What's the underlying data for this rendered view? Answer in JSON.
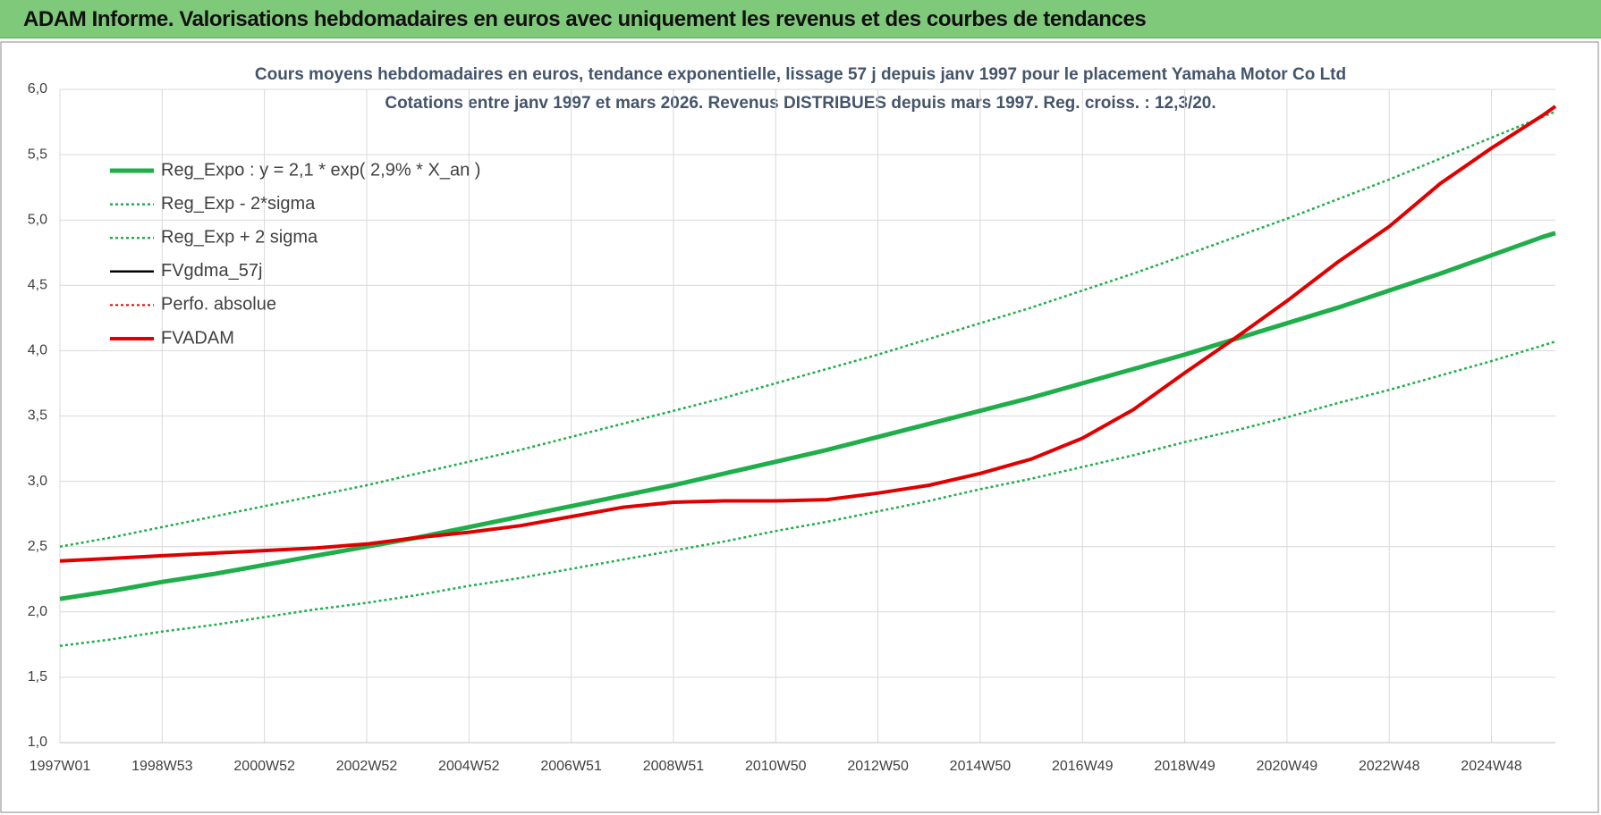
{
  "header": {
    "title": "ADAM Informe. Valorisations hebdomadaires en euros avec uniquement les revenus et des courbes de tendances"
  },
  "chart_data": {
    "type": "line",
    "title": "Cours moyens hebdomadaires en euros, tendance exponentielle, lissage 57 j depuis janv 1997  pour le placement Yamaha Motor Co Ltd",
    "subtitle": "Cotations entre janv 1997 et mars 2026. Revenus DISTRIBUES depuis mars 1997. Reg. croiss. : 12,3/20.",
    "x": [
      1997,
      1998,
      1999,
      2000,
      2001,
      2002,
      2003,
      2004,
      2005,
      2006,
      2007,
      2008,
      2009,
      2010,
      2011,
      2012,
      2013,
      2014,
      2015,
      2016,
      2017,
      2018,
      2019,
      2020,
      2021,
      2022,
      2023,
      2024,
      2025,
      2026,
      2026.25
    ],
    "xlim": [
      1997,
      2026.25
    ],
    "xticks": [
      {
        "value": 1997,
        "label": "1997W01"
      },
      {
        "value": 1999,
        "label": "1998W53"
      },
      {
        "value": 2001,
        "label": "2000W52"
      },
      {
        "value": 2003,
        "label": "2002W52"
      },
      {
        "value": 2005,
        "label": "2004W52"
      },
      {
        "value": 2007,
        "label": "2006W51"
      },
      {
        "value": 2009,
        "label": "2008W51"
      },
      {
        "value": 2011,
        "label": "2010W50"
      },
      {
        "value": 2013,
        "label": "2012W50"
      },
      {
        "value": 2015,
        "label": "2014W50"
      },
      {
        "value": 2017,
        "label": "2016W49"
      },
      {
        "value": 2019,
        "label": "2018W49"
      },
      {
        "value": 2021,
        "label": "2020W49"
      },
      {
        "value": 2023,
        "label": "2022W48"
      },
      {
        "value": 2025,
        "label": "2024W48"
      }
    ],
    "ylim": [
      1.0,
      6.0
    ],
    "yticks": [
      {
        "value": 1.0,
        "label": "1,0"
      },
      {
        "value": 1.5,
        "label": "1,5"
      },
      {
        "value": 2.0,
        "label": "2,0"
      },
      {
        "value": 2.5,
        "label": "2,5"
      },
      {
        "value": 3.0,
        "label": "3,0"
      },
      {
        "value": 3.5,
        "label": "3,5"
      },
      {
        "value": 4.0,
        "label": "4,0"
      },
      {
        "value": 4.5,
        "label": "4,5"
      },
      {
        "value": 5.0,
        "label": "5,0"
      },
      {
        "value": 5.5,
        "label": "5,5"
      },
      {
        "value": 6.0,
        "label": "6,0"
      }
    ],
    "grid": true,
    "series": [
      {
        "name": "Reg_Expo : y = 2,1 * exp( 2,9% *  X_an )",
        "color": "#1fae4a",
        "width": 5,
        "dash": "solid",
        "values": [
          2.1,
          2.16,
          2.23,
          2.29,
          2.36,
          2.43,
          2.5,
          2.57,
          2.65,
          2.73,
          2.81,
          2.89,
          2.97,
          3.06,
          3.15,
          3.24,
          3.34,
          3.44,
          3.54,
          3.64,
          3.75,
          3.86,
          3.97,
          4.09,
          4.21,
          4.33,
          4.46,
          4.59,
          4.73,
          4.87,
          4.9
        ]
      },
      {
        "name": "Reg_Exp - 2*sigma",
        "color": "#1fae4a",
        "width": 2.5,
        "dash": "dotted",
        "values": [
          1.74,
          1.79,
          1.85,
          1.9,
          1.96,
          2.02,
          2.07,
          2.13,
          2.2,
          2.26,
          2.33,
          2.4,
          2.47,
          2.54,
          2.62,
          2.69,
          2.77,
          2.85,
          2.94,
          3.02,
          3.11,
          3.2,
          3.3,
          3.39,
          3.49,
          3.6,
          3.7,
          3.81,
          3.92,
          4.04,
          4.07
        ]
      },
      {
        "name": "Reg_Exp + 2 sigma",
        "color": "#1fae4a",
        "width": 2.5,
        "dash": "dotted",
        "values": [
          2.5,
          2.57,
          2.65,
          2.73,
          2.81,
          2.89,
          2.97,
          3.06,
          3.15,
          3.24,
          3.34,
          3.44,
          3.54,
          3.64,
          3.75,
          3.86,
          3.97,
          4.09,
          4.21,
          4.33,
          4.46,
          4.59,
          4.73,
          4.87,
          5.01,
          5.16,
          5.31,
          5.47,
          5.63,
          5.79,
          5.83
        ]
      },
      {
        "name": "FVgdma_57j",
        "color": "#000000",
        "width": 2.5,
        "dash": "solid",
        "values": [
          2.39,
          2.41,
          2.43,
          2.45,
          2.47,
          2.49,
          2.52,
          2.57,
          2.61,
          2.66,
          2.73,
          2.8,
          2.84,
          2.85,
          2.85,
          2.86,
          2.91,
          2.97,
          3.06,
          3.17,
          3.33,
          3.55,
          3.83,
          4.1,
          4.38,
          4.68,
          4.95,
          5.28,
          5.55,
          5.8,
          5.87
        ]
      },
      {
        "name": "Perfo. absolue",
        "color": "#e00000",
        "width": 2,
        "dash": "dotted",
        "values": [
          2.39,
          2.41,
          2.43,
          2.45,
          2.47,
          2.49,
          2.52,
          2.57,
          2.61,
          2.66,
          2.73,
          2.8,
          2.84,
          2.85,
          2.85,
          2.86,
          2.91,
          2.97,
          3.06,
          3.17,
          3.33,
          3.55,
          3.83,
          4.1,
          4.38,
          4.68,
          4.95,
          5.28,
          5.55,
          5.8,
          5.87
        ]
      },
      {
        "name": "FVADAM",
        "color": "#e00000",
        "width": 4,
        "dash": "solid",
        "values": [
          2.39,
          2.41,
          2.43,
          2.45,
          2.47,
          2.49,
          2.52,
          2.57,
          2.61,
          2.66,
          2.73,
          2.8,
          2.84,
          2.85,
          2.85,
          2.86,
          2.91,
          2.97,
          3.06,
          3.17,
          3.33,
          3.55,
          3.83,
          4.1,
          4.38,
          4.68,
          4.95,
          5.28,
          5.55,
          5.8,
          5.87
        ]
      }
    ]
  }
}
